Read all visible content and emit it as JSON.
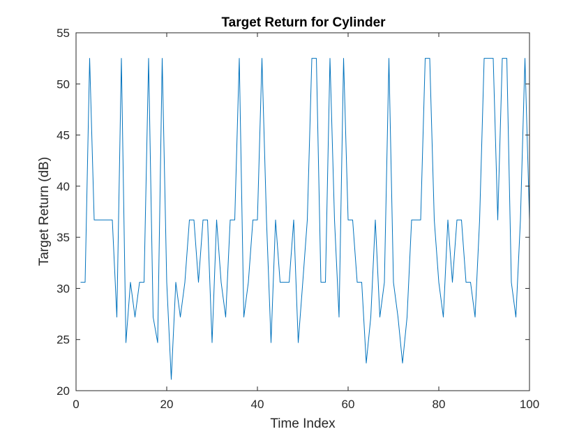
{
  "chart_data": {
    "type": "line",
    "title": "Target Return for Cylinder",
    "xlabel": "Time Index",
    "ylabel": "Target Return (dB)",
    "xlim": [
      0,
      100
    ],
    "ylim": [
      20,
      55
    ],
    "xticks": [
      0,
      20,
      40,
      60,
      80,
      100
    ],
    "yticks": [
      20,
      25,
      30,
      35,
      40,
      45,
      50,
      55
    ],
    "grid": false,
    "box": true,
    "series": [
      {
        "color": "#0072bd",
        "x": [
          1,
          2,
          3,
          4,
          5,
          6,
          7,
          8,
          9,
          10,
          11,
          12,
          13,
          14,
          15,
          16,
          17,
          18,
          19,
          20,
          21,
          22,
          23,
          24,
          25,
          26,
          27,
          28,
          29,
          30,
          31,
          32,
          33,
          34,
          35,
          36,
          37,
          38,
          39,
          40,
          41,
          42,
          43,
          44,
          45,
          46,
          47,
          48,
          49,
          50,
          51,
          52,
          53,
          54,
          55,
          56,
          57,
          58,
          59,
          60,
          61,
          62,
          63,
          64,
          65,
          66,
          67,
          68,
          69,
          70,
          71,
          72,
          73,
          74,
          75,
          76,
          77,
          78,
          79,
          80,
          81,
          82,
          83,
          84,
          85,
          86,
          87,
          88,
          89,
          90,
          91,
          92,
          93,
          94,
          95,
          96,
          97,
          98,
          99,
          100
        ],
        "y": [
          30.6,
          30.6,
          52.5,
          36.7,
          36.7,
          36.7,
          36.7,
          36.7,
          27.2,
          52.5,
          24.7,
          30.6,
          27.2,
          30.6,
          30.6,
          52.5,
          27.2,
          24.7,
          52.5,
          30.6,
          21.1,
          30.6,
          27.2,
          30.6,
          36.7,
          36.7,
          30.6,
          36.7,
          36.7,
          24.7,
          36.7,
          30.6,
          27.2,
          36.7,
          36.7,
          52.5,
          27.2,
          30.6,
          36.7,
          36.7,
          52.5,
          36.7,
          24.7,
          36.7,
          30.6,
          30.6,
          30.6,
          36.7,
          24.7,
          30.6,
          36.7,
          52.5,
          52.5,
          30.6,
          30.6,
          52.5,
          36.7,
          27.2,
          52.5,
          36.7,
          36.7,
          30.6,
          30.6,
          22.7,
          27.2,
          36.7,
          27.2,
          30.6,
          52.5,
          30.6,
          27.2,
          22.7,
          27.2,
          36.7,
          36.7,
          36.7,
          52.5,
          52.5,
          36.7,
          30.6,
          27.2,
          36.7,
          30.6,
          36.7,
          36.7,
          30.6,
          30.6,
          27.2,
          36.7,
          52.5,
          52.5,
          52.5,
          36.7,
          52.5,
          52.5,
          30.6,
          27.2,
          36.7,
          52.5,
          36.7
        ]
      }
    ]
  }
}
